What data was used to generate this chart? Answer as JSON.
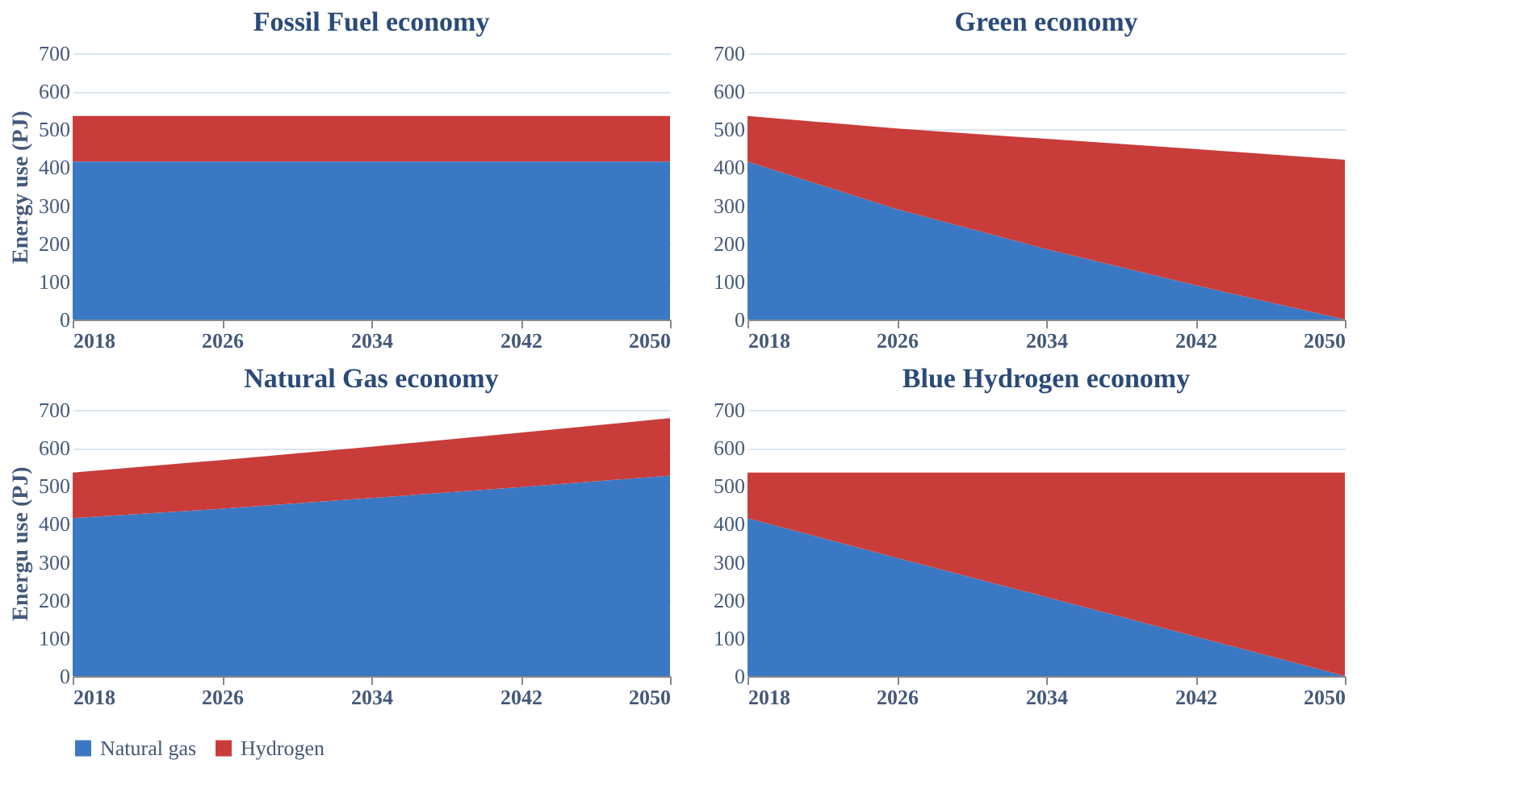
{
  "chart_data": [
    {
      "type": "area",
      "stacked": true,
      "title": "Fossil Fuel economy",
      "ylabel": "Energy use (PJ)",
      "x": [
        2018,
        2026,
        2034,
        2042,
        2050
      ],
      "xlim": [
        2018,
        2050
      ],
      "xticks": [
        2018,
        2026,
        2034,
        2042,
        2050
      ],
      "ylim": [
        0,
        700
      ],
      "yticks": [
        0,
        100,
        200,
        300,
        400,
        500,
        600,
        700
      ],
      "grid": "y",
      "series": [
        {
          "color": "#3a78c4",
          "values": [
            415,
            415,
            415,
            415,
            415
          ]
        },
        {
          "color": "#c83c3a",
          "values": [
            120,
            120,
            120,
            120,
            120
          ]
        }
      ]
    },
    {
      "type": "area",
      "stacked": true,
      "title": "Green economy",
      "x": [
        2018,
        2026,
        2034,
        2042,
        2050
      ],
      "xlim": [
        2018,
        2050
      ],
      "xticks": [
        2018,
        2026,
        2034,
        2042,
        2050
      ],
      "ylim": [
        0,
        700
      ],
      "yticks": [
        0,
        100,
        200,
        300,
        400,
        500,
        600,
        700
      ],
      "grid": "y",
      "series": [
        {
          "color": "#3a78c4",
          "values": [
            415,
            290,
            185,
            90,
            0
          ]
        },
        {
          "color": "#c83c3a",
          "values": [
            120,
            212,
            290,
            358,
            420
          ]
        }
      ]
    },
    {
      "type": "area",
      "stacked": true,
      "title": "Natural Gas economy",
      "ylabel": "Energu use (PJ)",
      "x": [
        2018,
        2026,
        2034,
        2042,
        2050
      ],
      "xlim": [
        2018,
        2050
      ],
      "xticks": [
        2018,
        2026,
        2034,
        2042,
        2050
      ],
      "ylim": [
        0,
        700
      ],
      "yticks": [
        0,
        100,
        200,
        300,
        400,
        500,
        600,
        700
      ],
      "grid": "y",
      "legend": "bottom",
      "series": [
        {
          "name": "Natural gas",
          "color": "#3a78c4",
          "values": [
            415,
            440,
            468,
            497,
            527
          ]
        },
        {
          "name": "Hydrogen",
          "color": "#c83c3a",
          "values": [
            120,
            128,
            135,
            143,
            151
          ]
        }
      ]
    },
    {
      "type": "area",
      "stacked": true,
      "title": "Blue Hydrogen economy",
      "x": [
        2018,
        2026,
        2034,
        2042,
        2050
      ],
      "xlim": [
        2018,
        2050
      ],
      "xticks": [
        2018,
        2026,
        2034,
        2042,
        2050
      ],
      "ylim": [
        0,
        700
      ],
      "yticks": [
        0,
        100,
        200,
        300,
        400,
        500,
        600,
        700
      ],
      "grid": "y",
      "series": [
        {
          "color": "#3a78c4",
          "values": [
            415,
            311,
            208,
            104,
            0
          ]
        },
        {
          "color": "#c83c3a",
          "values": [
            120,
            224,
            327,
            431,
            535
          ]
        }
      ]
    }
  ]
}
